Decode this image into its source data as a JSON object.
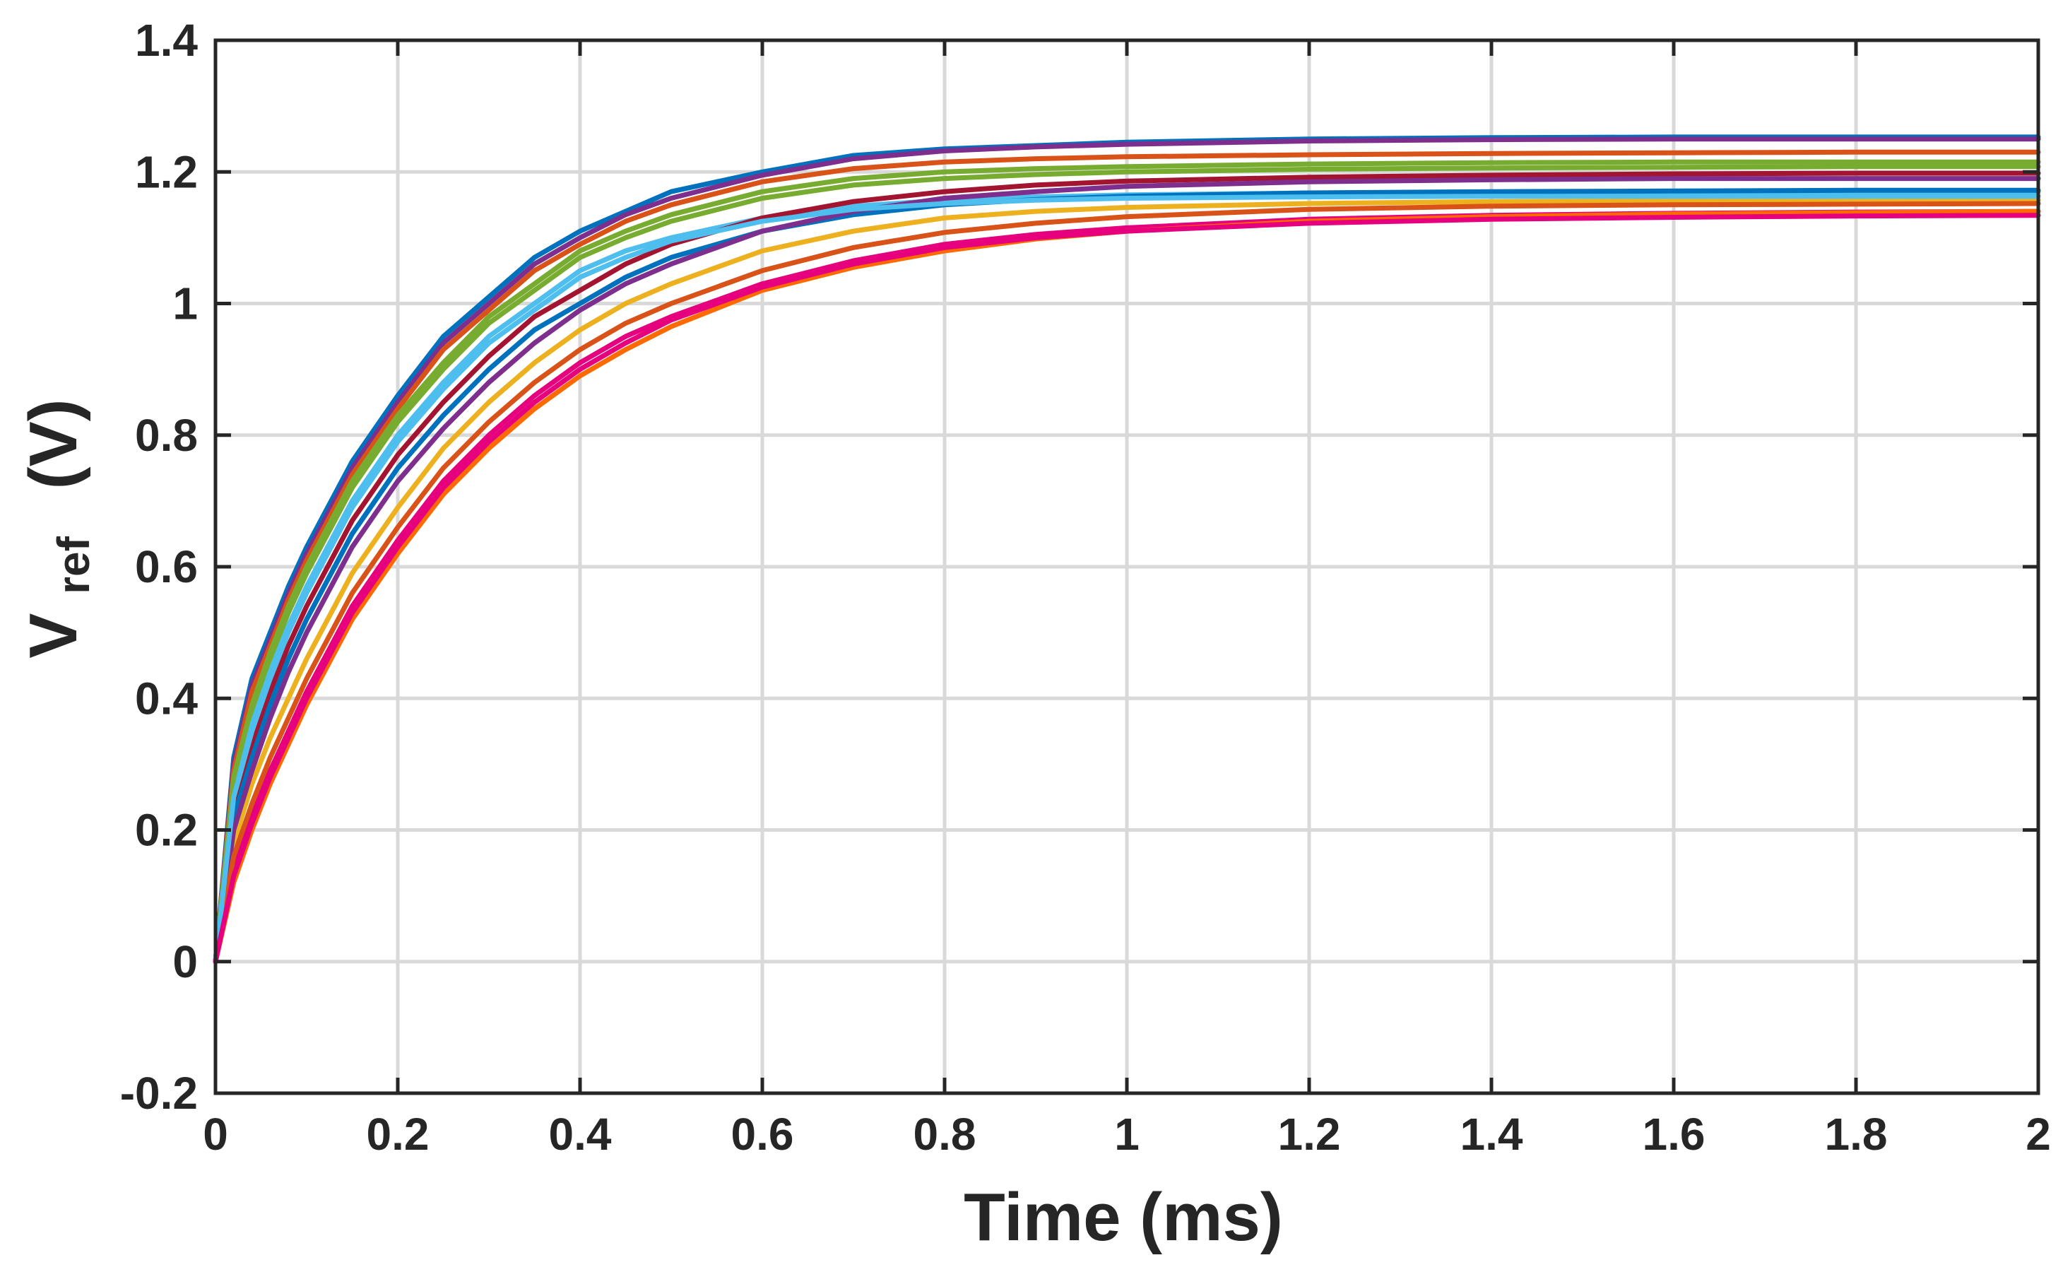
{
  "chart_data": {
    "type": "line",
    "title": "",
    "xlabel": "Time  (ms)",
    "ylabel": {
      "main": "V",
      "subscript": "ref",
      "unit": "(V)"
    },
    "xlim": [
      0,
      2
    ],
    "ylim": [
      -0.2,
      1.4
    ],
    "x_ticks": [
      {
        "value": 0,
        "label": "0"
      },
      {
        "value": 0.2,
        "label": "0.2"
      },
      {
        "value": 0.4,
        "label": "0.4"
      },
      {
        "value": 0.6,
        "label": "0.6"
      },
      {
        "value": 0.8,
        "label": "0.8"
      },
      {
        "value": 1,
        "label": "1"
      },
      {
        "value": 1.2,
        "label": "1.2"
      },
      {
        "value": 1.4,
        "label": "1.4"
      },
      {
        "value": 1.6,
        "label": "1.6"
      },
      {
        "value": 1.8,
        "label": "1.8"
      },
      {
        "value": 2,
        "label": "2"
      }
    ],
    "y_ticks": [
      {
        "value": -0.2,
        "label": "-0.2"
      },
      {
        "value": 0,
        "label": "0"
      },
      {
        "value": 0.2,
        "label": "0.2"
      },
      {
        "value": 0.4,
        "label": "0.4"
      },
      {
        "value": 0.6,
        "label": "0.6"
      },
      {
        "value": 0.8,
        "label": "0.8"
      },
      {
        "value": 1,
        "label": "1"
      },
      {
        "value": 1.2,
        "label": "1.2"
      },
      {
        "value": 1.4,
        "label": "1.4"
      }
    ],
    "grid": true,
    "legend": "none",
    "x": [
      0,
      0.02,
      0.04,
      0.06,
      0.08,
      0.1,
      0.15,
      0.2,
      0.25,
      0.3,
      0.35,
      0.4,
      0.45,
      0.5,
      0.6,
      0.7,
      0.8,
      0.9,
      1.0,
      1.2,
      1.4,
      1.6,
      1.8,
      2.0
    ],
    "series": [
      {
        "color": "#0072BD",
        "values": [
          0,
          0.31,
          0.43,
          0.5,
          0.57,
          0.63,
          0.76,
          0.86,
          0.95,
          1.01,
          1.07,
          1.11,
          1.14,
          1.17,
          1.2,
          1.225,
          1.235,
          1.24,
          1.245,
          1.25,
          1.252,
          1.253,
          1.253,
          1.253
        ]
      },
      {
        "color": "#7E2F8E",
        "values": [
          0,
          0.3,
          0.42,
          0.49,
          0.56,
          0.62,
          0.75,
          0.85,
          0.94,
          1.0,
          1.06,
          1.1,
          1.135,
          1.16,
          1.195,
          1.22,
          1.232,
          1.238,
          1.242,
          1.247,
          1.249,
          1.25,
          1.25,
          1.25
        ]
      },
      {
        "color": "#D95319",
        "values": [
          0,
          0.29,
          0.41,
          0.48,
          0.55,
          0.61,
          0.74,
          0.84,
          0.93,
          0.99,
          1.05,
          1.09,
          1.125,
          1.15,
          1.185,
          1.205,
          1.215,
          1.22,
          1.223,
          1.226,
          1.228,
          1.229,
          1.23,
          1.23
        ]
      },
      {
        "color": "#77AC30",
        "values": [
          0,
          0.27,
          0.38,
          0.46,
          0.53,
          0.59,
          0.72,
          0.82,
          0.9,
          0.97,
          1.02,
          1.07,
          1.1,
          1.125,
          1.16,
          1.18,
          1.19,
          1.196,
          1.2,
          1.204,
          1.206,
          1.207,
          1.208,
          1.208
        ]
      },
      {
        "color": "#4DBEEE",
        "values": [
          0,
          0.26,
          0.36,
          0.44,
          0.51,
          0.57,
          0.7,
          0.8,
          0.88,
          0.95,
          1.0,
          1.05,
          1.08,
          1.1,
          1.13,
          1.148,
          1.157,
          1.162,
          1.165,
          1.168,
          1.169,
          1.17,
          1.17,
          1.17
        ]
      },
      {
        "color": "#A2142F",
        "values": [
          0,
          0.24,
          0.33,
          0.41,
          0.48,
          0.54,
          0.67,
          0.77,
          0.85,
          0.92,
          0.98,
          1.02,
          1.06,
          1.09,
          1.13,
          1.155,
          1.17,
          1.18,
          1.186,
          1.192,
          1.195,
          1.197,
          1.198,
          1.198
        ]
      },
      {
        "color": "#EDB120",
        "values": [
          0,
          0.18,
          0.27,
          0.34,
          0.4,
          0.46,
          0.59,
          0.69,
          0.78,
          0.85,
          0.91,
          0.96,
          1.0,
          1.03,
          1.08,
          1.11,
          1.13,
          1.14,
          1.146,
          1.152,
          1.155,
          1.156,
          1.157,
          1.157
        ]
      },
      {
        "color": "#E6007E",
        "values": [
          0,
          0.14,
          0.22,
          0.29,
          0.35,
          0.41,
          0.54,
          0.64,
          0.73,
          0.8,
          0.86,
          0.91,
          0.95,
          0.98,
          1.03,
          1.065,
          1.09,
          1.105,
          1.115,
          1.128,
          1.134,
          1.137,
          1.139,
          1.14
        ]
      },
      {
        "color": "#FF6A00",
        "values": [
          0,
          0.12,
          0.2,
          0.27,
          0.33,
          0.39,
          0.52,
          0.62,
          0.71,
          0.78,
          0.84,
          0.89,
          0.93,
          0.965,
          1.02,
          1.055,
          1.08,
          1.098,
          1.11,
          1.125,
          1.132,
          1.136,
          1.138,
          1.14
        ]
      },
      {
        "color": "#0072BD",
        "values": [
          0,
          0.22,
          0.31,
          0.39,
          0.46,
          0.52,
          0.65,
          0.75,
          0.83,
          0.9,
          0.96,
          1.0,
          1.04,
          1.07,
          1.11,
          1.135,
          1.15,
          1.158,
          1.163,
          1.168,
          1.17,
          1.171,
          1.172,
          1.172
        ]
      },
      {
        "color": "#7E2F8E",
        "values": [
          0,
          0.2,
          0.29,
          0.37,
          0.44,
          0.5,
          0.63,
          0.73,
          0.81,
          0.88,
          0.94,
          0.99,
          1.03,
          1.06,
          1.11,
          1.14,
          1.16,
          1.17,
          1.178,
          1.185,
          1.188,
          1.19,
          1.19,
          1.19
        ]
      },
      {
        "color": "#D95319",
        "values": [
          0,
          0.16,
          0.24,
          0.31,
          0.37,
          0.43,
          0.56,
          0.66,
          0.75,
          0.82,
          0.88,
          0.93,
          0.97,
          1.0,
          1.05,
          1.085,
          1.108,
          1.122,
          1.132,
          1.143,
          1.148,
          1.15,
          1.151,
          1.152
        ]
      },
      {
        "color": "#77AC30",
        "values": [
          0,
          0.28,
          0.39,
          0.47,
          0.54,
          0.6,
          0.73,
          0.83,
          0.91,
          0.98,
          1.03,
          1.08,
          1.11,
          1.135,
          1.17,
          1.19,
          1.2,
          1.205,
          1.208,
          1.212,
          1.214,
          1.215,
          1.215,
          1.215
        ]
      },
      {
        "color": "#4DBEEE",
        "values": [
          0,
          0.25,
          0.35,
          0.43,
          0.5,
          0.56,
          0.69,
          0.79,
          0.87,
          0.94,
          0.99,
          1.04,
          1.07,
          1.095,
          1.125,
          1.143,
          1.152,
          1.157,
          1.16,
          1.162,
          1.163,
          1.163,
          1.163,
          1.163
        ]
      },
      {
        "color": "#E6007E",
        "values": [
          0,
          0.13,
          0.21,
          0.28,
          0.34,
          0.4,
          0.53,
          0.63,
          0.72,
          0.79,
          0.85,
          0.9,
          0.94,
          0.975,
          1.025,
          1.06,
          1.085,
          1.1,
          1.11,
          1.122,
          1.128,
          1.131,
          1.133,
          1.134
        ]
      }
    ]
  }
}
